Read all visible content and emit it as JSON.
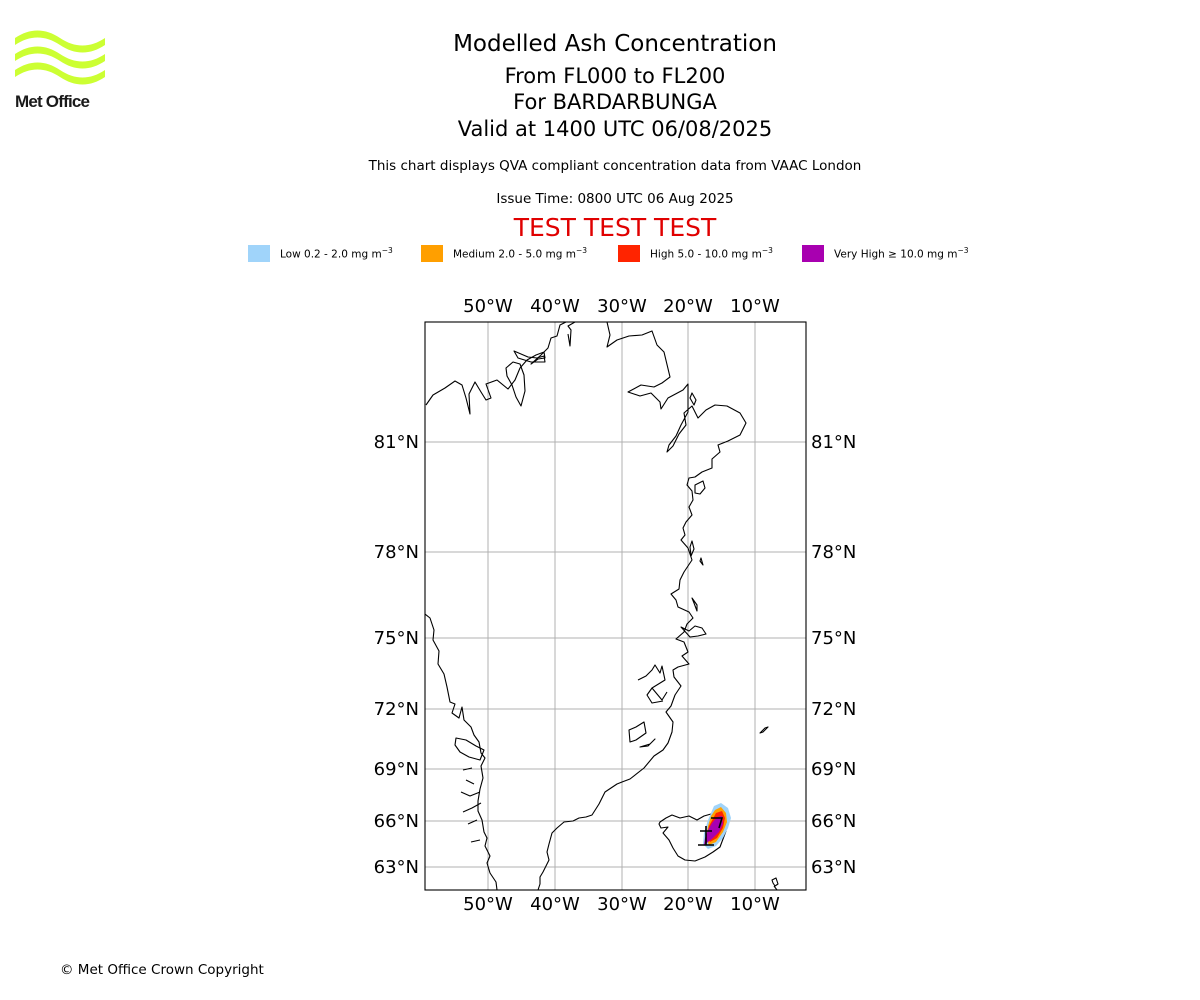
{
  "header": {
    "organisation": "Met Office",
    "title": "Modelled Ash Concentration",
    "flight_levels": "From FL000 to FL200",
    "volcano": "For BARDARBUNGA",
    "validity": "Valid at 1400 UTC 06/08/2025",
    "compliance_note": "This chart displays QVA compliant concentration data from VAAC London",
    "issue_time": "Issue Time: 0800 UTC 06 Aug 2025",
    "test_banner": "TEST TEST TEST",
    "test_banner_color": "#e00000",
    "logo_color": "#ccff33"
  },
  "legend": [
    {
      "label": "Low 0.2 - 2.0 mg m",
      "exponent": "−3",
      "color": "#a0d4fa"
    },
    {
      "label": "Medium 2.0 - 5.0 mg m",
      "exponent": "−3",
      "color": "#ff9f00"
    },
    {
      "label": "High 5.0 - 10.0 mg m",
      "exponent": "−3",
      "color": "#ff2400"
    },
    {
      "label": "Very High ≥ 10.0 mg m",
      "exponent": "−3",
      "color": "#a800b0"
    }
  ],
  "map": {
    "lon_labels": [
      "50°W",
      "40°W",
      "30°W",
      "20°W",
      "10°W"
    ],
    "lat_labels": [
      "81°N",
      "78°N",
      "75°N",
      "72°N",
      "69°N",
      "66°N",
      "63°N"
    ],
    "gridline_color": "#b0b0b0"
  },
  "footer": {
    "copyright": "© Met Office Crown Copyright"
  }
}
